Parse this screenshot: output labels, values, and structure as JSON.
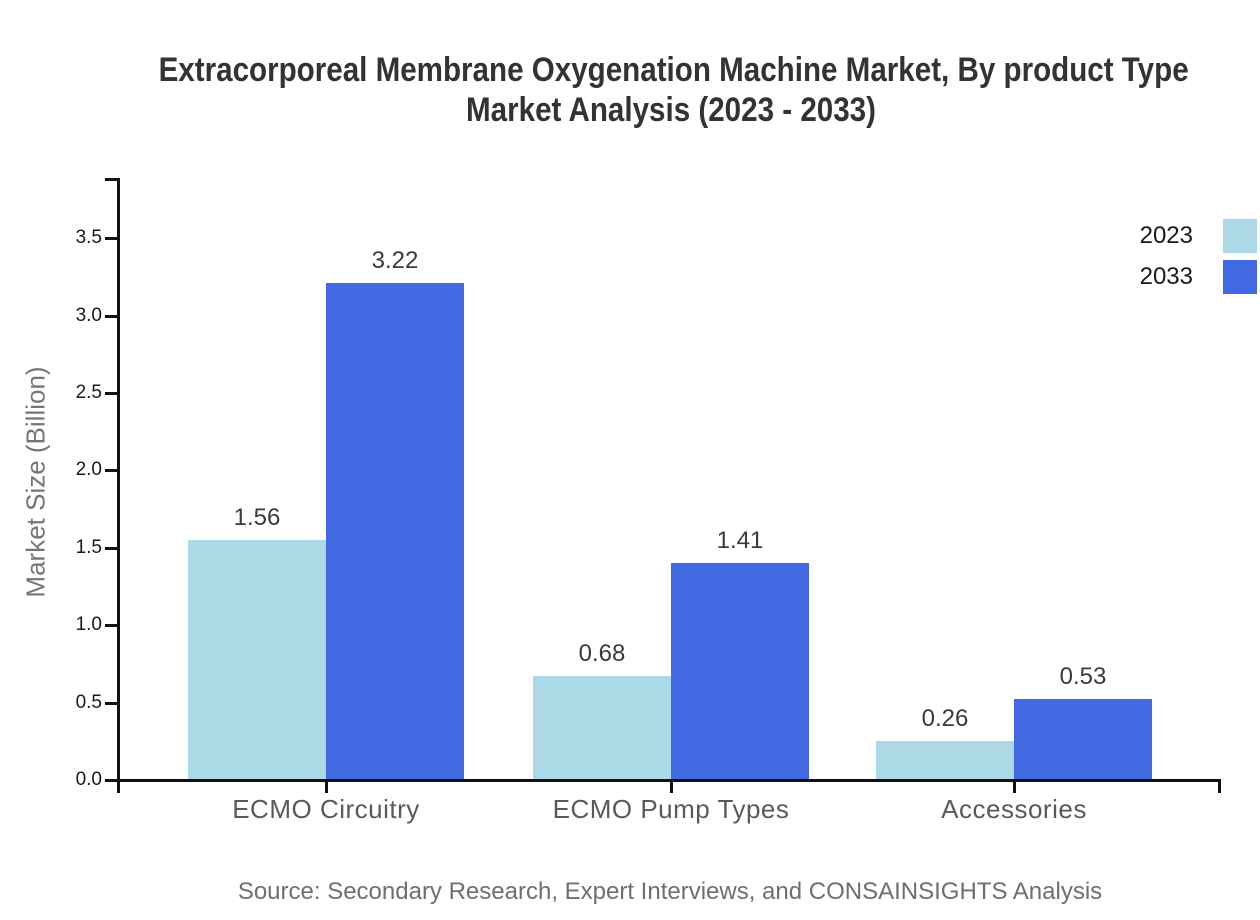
{
  "page": {
    "title_line1": "Extracorporeal Membrane Oxygenation Machine Market, By product Type",
    "title_line2": "Market Analysis (2023 - 2033)",
    "source_note": "Source: Secondary Research, Expert Interviews, and CONSAINSIGHTS Analysis"
  },
  "legend": {
    "position": "top-right",
    "items": [
      {
        "label": "2023",
        "color": "#ADD8E6"
      },
      {
        "label": "2033",
        "color": "#4169E1"
      }
    ]
  },
  "chart_data": {
    "type": "bar",
    "title": "Extracorporeal Membrane Oxygenation Machine Market, By product Type Market Analysis (2023 - 2033)",
    "categories": [
      "ECMO Circuitry",
      "ECMO Pump Types",
      "Accessories"
    ],
    "series": [
      {
        "name": "2023",
        "color": "#ADD8E6",
        "values": [
          1.56,
          0.68,
          0.26
        ]
      },
      {
        "name": "2033",
        "color": "#4169E1",
        "values": [
          3.22,
          1.41,
          0.53
        ]
      }
    ],
    "value_labels": [
      [
        "1.56",
        "0.68",
        "0.26"
      ],
      [
        "3.22",
        "1.41",
        "0.53"
      ]
    ],
    "xlabel": "",
    "ylabel": "Market Size (Billion)",
    "yticks": [
      "0.0",
      "0.5",
      "1.0",
      "1.5",
      "2.0",
      "2.5",
      "3.0",
      "3.5"
    ],
    "ylim": [
      0,
      3.89
    ],
    "grid": false,
    "legend_position": "top-right",
    "source": "Source: Secondary Research, Expert Interviews, and CONSAINSIGHTS Analysis"
  },
  "colors": {
    "axis": "#111111",
    "title_text": "#333333",
    "tick_text": "#1a1a1a",
    "category_text": "#5a5a5a",
    "value_text": "#3a3a3a",
    "muted_text": "#757575",
    "background": "#ffffff"
  }
}
